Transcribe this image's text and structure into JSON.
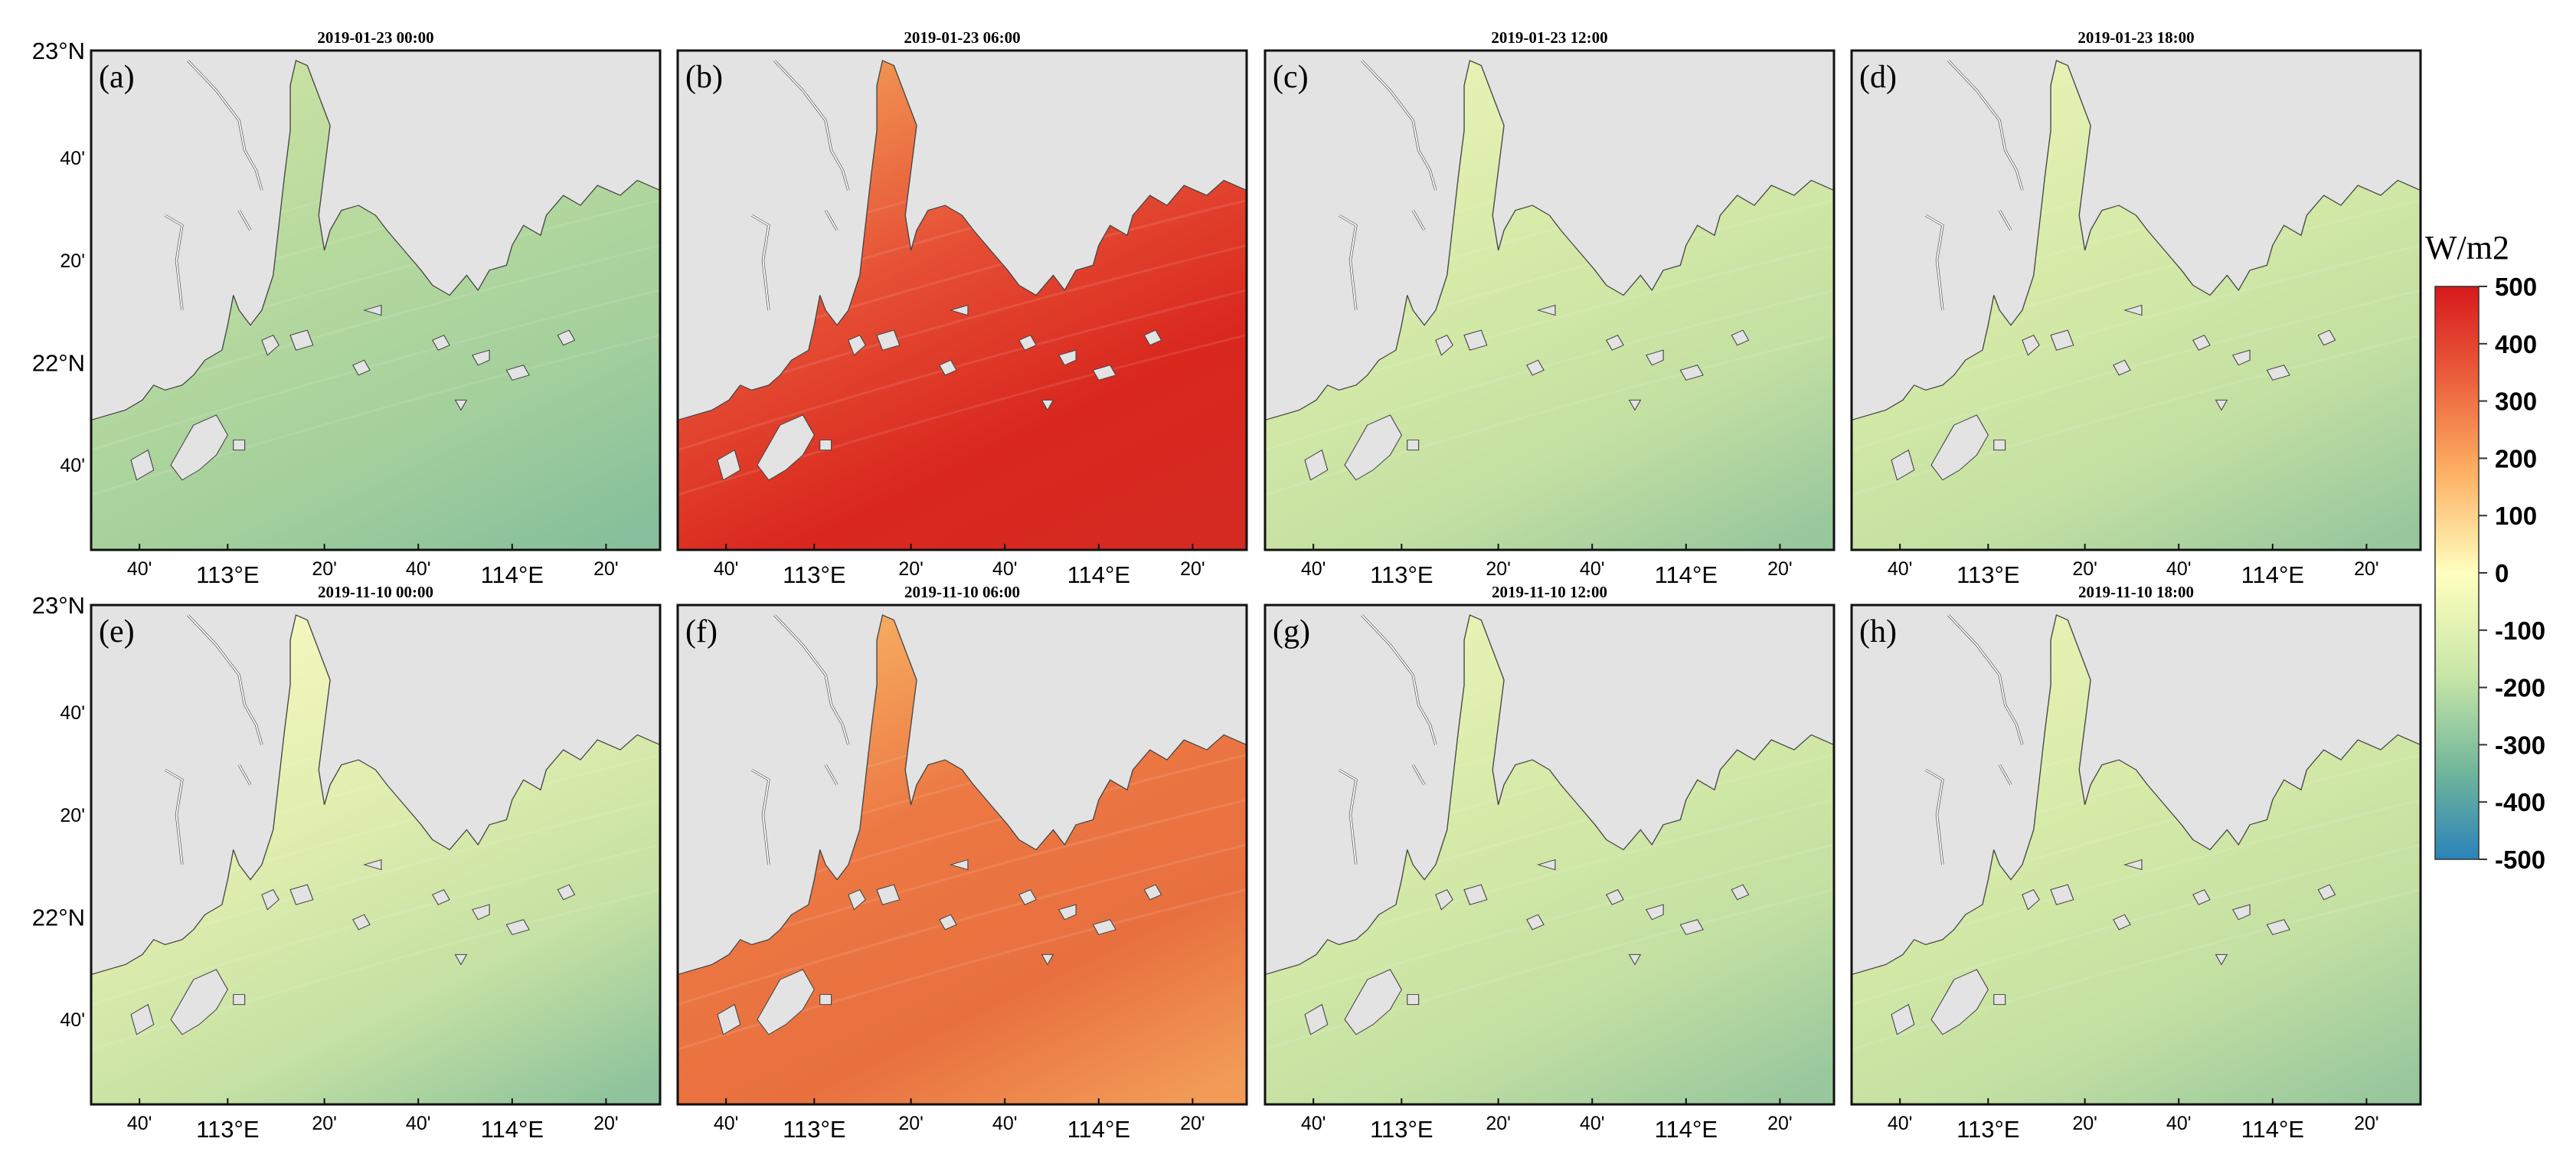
{
  "colorbar": {
    "units": "W/m2",
    "ticks": [
      "500",
      "400",
      "300",
      "200",
      "100",
      "0",
      "-100",
      "-200",
      "-300",
      "-400",
      "-500"
    ],
    "range": [
      -500,
      500
    ],
    "colors": [
      "#d7191c",
      "#f07c4a",
      "#fdbf6f",
      "#ffffbf",
      "#c7e6a7",
      "#7fbf9c",
      "#2b83ba"
    ]
  },
  "panels": [
    {
      "label": "(a)",
      "title": "2019-01-23 00:00",
      "tone": "cool_mid",
      "mean_flux": -200
    },
    {
      "label": "(b)",
      "title": "2019-01-23 06:00",
      "tone": "hot_strong",
      "mean_flux": 430
    },
    {
      "label": "(c)",
      "title": "2019-01-23 12:00",
      "tone": "cool_light",
      "mean_flux": -150
    },
    {
      "label": "(d)",
      "title": "2019-01-23 18:00",
      "tone": "cool_light",
      "mean_flux": -160
    },
    {
      "label": "(e)",
      "title": "2019-11-10 00:00",
      "tone": "cool_warm",
      "mean_flux": -110
    },
    {
      "label": "(f)",
      "title": "2019-11-10 06:00",
      "tone": "hot_mid",
      "mean_flux": 330
    },
    {
      "label": "(g)",
      "title": "2019-11-10 12:00",
      "tone": "cool_light",
      "mean_flux": -160
    },
    {
      "label": "(h)",
      "title": "2019-11-10 18:00",
      "tone": "cool_light",
      "mean_flux": -160
    }
  ],
  "axes": {
    "lat_ticks": [
      "23°N",
      "40'",
      "20'",
      "22°N",
      "40'"
    ],
    "lon_ticks": [
      "40'",
      "113°E",
      "20'",
      "40'",
      "114°E",
      "20'"
    ]
  }
}
